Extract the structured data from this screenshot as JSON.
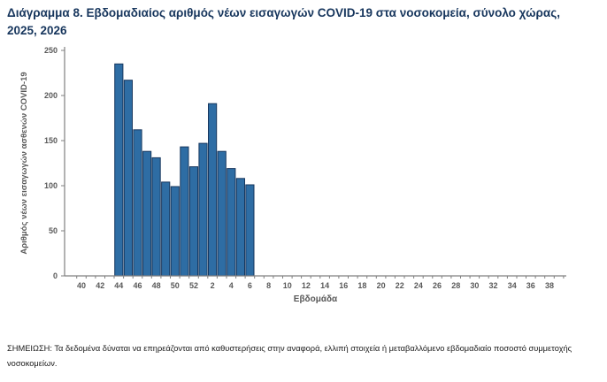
{
  "header": {
    "title_line1": "Διάγραμμα 8. Εβδομαδιαίος αριθμός νέων εισαγωγών COVID-19 στα νοσοκομεία, σύνολο χώρας,",
    "title_line2": "2025, 2026"
  },
  "footnote": {
    "text": "ΣΗΜΕΙΩΣΗ: Τα δεδομένα δύναται να επηρεάζονται από καθυστερήσεις στην αναφορά, ελλιπή στοιχεία ή μεταβαλλόμενο εβδομαδιαίο ποσοστό συμμετοχής νοσοκομείων."
  },
  "colors": {
    "bar_fill": "#2E6DA4",
    "bar_border": "#17375E",
    "axis": "#808080",
    "tick_label": "#595959",
    "title_text": "#17365D"
  },
  "chart_data": {
    "type": "bar",
    "title": "Διάγραμμα 8. Εβδομαδιαίος αριθμός νέων εισαγωγών COVID-19 στα νοσοκομεία, σύνολο χώρας, 2025, 2026",
    "xlabel": "Εβδομάδα",
    "ylabel": "Αριθμός νέων εισαγωγών ασθενών COVID-19",
    "ylim": [
      0,
      250
    ],
    "y_ticks": [
      0,
      50,
      100,
      150,
      200,
      250
    ],
    "x_tick_labels": [
      "40",
      "42",
      "44",
      "46",
      "48",
      "50",
      "52",
      "2",
      "4",
      "6",
      "8",
      "10",
      "12",
      "14",
      "16",
      "18",
      "20",
      "22",
      "24",
      "26",
      "28",
      "30",
      "32",
      "34",
      "36",
      "38"
    ],
    "legend": "none",
    "grid": "off",
    "categories": [
      "40",
      "41",
      "42",
      "43",
      "44",
      "45",
      "46",
      "47",
      "48",
      "49",
      "50",
      "51",
      "52",
      "1",
      "2",
      "3",
      "4",
      "5",
      "6",
      "7",
      "8",
      "9",
      "10",
      "11",
      "12",
      "13",
      "14",
      "15",
      "16",
      "17",
      "18",
      "19",
      "20",
      "21",
      "22",
      "23",
      "24",
      "25",
      "26",
      "27",
      "28",
      "29",
      "30",
      "31",
      "32",
      "33",
      "34",
      "35",
      "36",
      "37",
      "38"
    ],
    "values": [
      null,
      null,
      null,
      null,
      235,
      217,
      162,
      138,
      131,
      104,
      99,
      143,
      121,
      147,
      191,
      138,
      119,
      108,
      101,
      null,
      null,
      null,
      null,
      null,
      null,
      null,
      null,
      null,
      null,
      null,
      null,
      null,
      null,
      null,
      null,
      null,
      null,
      null,
      null,
      null,
      null,
      null,
      null,
      null,
      null,
      null,
      null,
      null,
      null,
      null,
      null
    ]
  }
}
